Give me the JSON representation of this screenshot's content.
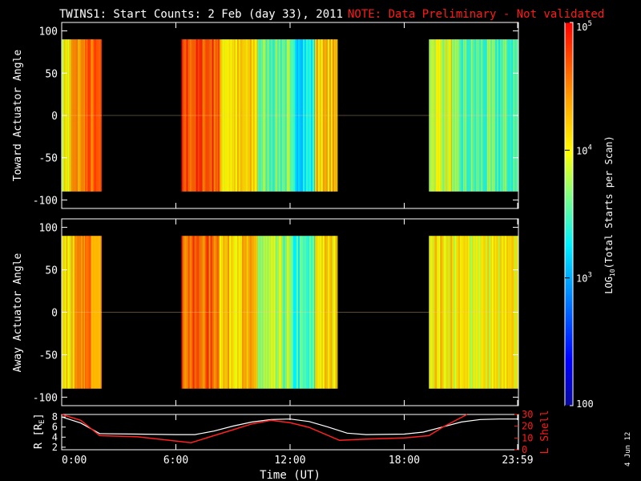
{
  "title": {
    "main": "TWINS1: Start Counts:  2 Feb (day  33), 2011",
    "note": "NOTE: Data Preliminary - Not validated"
  },
  "colors": {
    "background": "#000000",
    "axes": "#ffffff",
    "note_text": "#ff1a1a",
    "lshell_line": "#ff2020",
    "r_line": "#ffffff"
  },
  "colorbar": {
    "label": "LOG10(Total Starts per Scan)",
    "label_base": "LOG",
    "label_sub": "10",
    "label_rest": "(Total Starts per Scan)",
    "range": [
      100,
      100000
    ],
    "scale": "log",
    "ticks": [
      {
        "value": 100000,
        "base": "10",
        "exp": "5"
      },
      {
        "value": 10000,
        "base": "10",
        "exp": "4"
      },
      {
        "value": 1000,
        "base": "10",
        "exp": "3"
      },
      {
        "value": 100,
        "base": "100",
        "exp": ""
      }
    ]
  },
  "datestamp": "4 Jun 12",
  "bottom_panel": {
    "left_label": "R [RE]",
    "left_label_base": "R [R",
    "left_label_sub": "E",
    "left_label_end": "]",
    "right_label": "L Shell",
    "left_ticks": [
      "2",
      "4",
      "6",
      "8"
    ],
    "right_ticks": [
      "0",
      "10",
      "20",
      "30"
    ]
  },
  "x_axis": {
    "label": "Time (UT)",
    "ticks": [
      "0:00",
      "6:00",
      "12:00",
      "18:00",
      "23:59"
    ]
  },
  "chart_data": [
    {
      "type": "heatmap",
      "title": "TWINS1: Start Counts:  2 Feb (day  33), 2011",
      "xlabel": "",
      "ylabel": "Toward Actuator Angle",
      "xlim": [
        0,
        24
      ],
      "ylim": [
        -110,
        110
      ],
      "y_ticks": [
        100,
        50,
        0,
        -50,
        -100
      ],
      "z_scale": "log",
      "z_range": [
        100,
        100000
      ],
      "data_intervals_ut_hours": [
        [
          -0.2,
          2.1
        ],
        [
          6.3,
          14.5
        ],
        [
          19.3,
          24.2
        ]
      ],
      "angle_range": [
        -90,
        90
      ],
      "column_log10_counts": [
        {
          "ut_hours": [
            -0.2,
            0.5
          ],
          "log10_counts": 4.0
        },
        {
          "ut_hours": [
            0.5,
            1.2
          ],
          "log10_counts": 4.4
        },
        {
          "ut_hours": [
            1.2,
            2.1
          ],
          "log10_counts": 4.6
        },
        {
          "ut_hours": [
            6.3,
            8.3
          ],
          "log10_counts": 4.7
        },
        {
          "ut_hours": [
            8.3,
            10.3
          ],
          "log10_counts": 4.1
        },
        {
          "ut_hours": [
            10.3,
            12.0
          ],
          "log10_counts": 3.6
        },
        {
          "ut_hours": [
            12.0,
            13.3
          ],
          "log10_counts": 3.3
        },
        {
          "ut_hours": [
            13.3,
            14.5
          ],
          "log10_counts": 4.2
        },
        {
          "ut_hours": [
            19.3,
            20.5
          ],
          "log10_counts": 3.9
        },
        {
          "ut_hours": [
            20.5,
            24.2
          ],
          "log10_counts": 3.5
        }
      ]
    },
    {
      "type": "heatmap",
      "xlabel": "",
      "ylabel": "Away Actuator Angle",
      "xlim": [
        0,
        24
      ],
      "ylim": [
        -110,
        110
      ],
      "y_ticks": [
        100,
        50,
        0,
        -50,
        -100
      ],
      "z_scale": "log",
      "z_range": [
        100,
        100000
      ],
      "data_intervals_ut_hours": [
        [
          -0.2,
          2.1
        ],
        [
          6.3,
          14.5
        ],
        [
          19.3,
          24.2
        ]
      ],
      "angle_range": [
        -90,
        90
      ],
      "column_log10_counts": [
        {
          "ut_hours": [
            -0.2,
            0.5
          ],
          "log10_counts": 4.1
        },
        {
          "ut_hours": [
            0.5,
            1.2
          ],
          "log10_counts": 4.3
        },
        {
          "ut_hours": [
            1.2,
            2.1
          ],
          "log10_counts": 4.5
        },
        {
          "ut_hours": [
            6.3,
            8.3
          ],
          "log10_counts": 4.6
        },
        {
          "ut_hours": [
            8.3,
            10.3
          ],
          "log10_counts": 4.2
        },
        {
          "ut_hours": [
            10.3,
            12.0
          ],
          "log10_counts": 3.7
        },
        {
          "ut_hours": [
            12.0,
            13.3
          ],
          "log10_counts": 3.4
        },
        {
          "ut_hours": [
            13.3,
            14.5
          ],
          "log10_counts": 4.1
        },
        {
          "ut_hours": [
            19.3,
            20.5
          ],
          "log10_counts": 4.1
        },
        {
          "ut_hours": [
            20.5,
            24.2
          ],
          "log10_counts": 4.0
        }
      ]
    },
    {
      "type": "line",
      "xlabel": "Time (UT)",
      "ylabel": "R [RE]",
      "y2label": "L Shell",
      "xlim": [
        0,
        24
      ],
      "ylim": [
        1.5,
        8.5
      ],
      "y2lim": [
        0,
        30
      ],
      "series": [
        {
          "axis": "left",
          "x": [
            0,
            1,
            2,
            4,
            6,
            7,
            8,
            9,
            10,
            11,
            12,
            13,
            14,
            15,
            16,
            18,
            19,
            20,
            21,
            22,
            23,
            24
          ],
          "values": [
            8.0,
            6.8,
            4.7,
            4.6,
            4.5,
            4.5,
            5.2,
            6.2,
            7.0,
            7.5,
            7.6,
            7.1,
            6.0,
            4.8,
            4.5,
            4.6,
            5.0,
            6.0,
            7.0,
            7.5,
            7.6,
            7.6
          ]
        },
        {
          "axis": "right",
          "x": [
            0,
            1,
            2,
            4,
            6.8,
            8,
            9,
            10,
            11,
            12,
            13,
            14.6,
            16,
            18,
            19.3,
            20,
            21.3
          ],
          "values": [
            30,
            25,
            12,
            11,
            6,
            12,
            17,
            22,
            25,
            23,
            19,
            8,
            9,
            10,
            12,
            19,
            30
          ]
        }
      ]
    }
  ]
}
